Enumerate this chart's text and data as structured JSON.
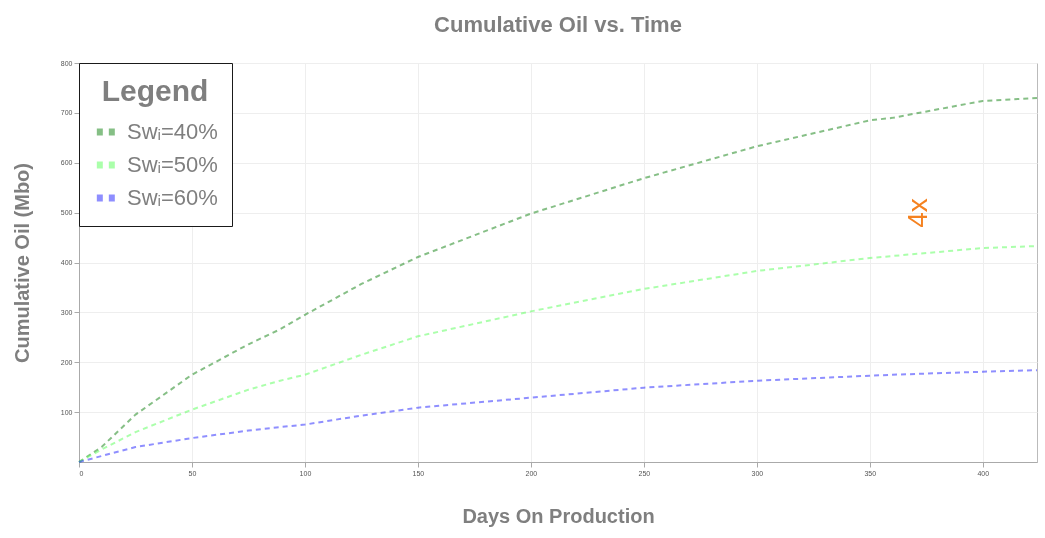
{
  "chart_data": {
    "type": "line",
    "title": "Cumulative Oil vs. Time",
    "xlabel": "Days On Production",
    "ylabel": "Cumulative Oil (Mbo)",
    "legend_title": "Legend",
    "x": [
      0,
      10,
      25,
      50,
      75,
      89,
      100,
      125,
      150,
      200,
      250,
      300,
      350,
      360,
      400,
      424
    ],
    "series": [
      {
        "name": "Swᵢ=40%",
        "color": "#228b22",
        "values": [
          0,
          30,
          95,
          175,
          236,
          266,
          295,
          357,
          411,
          498,
          569,
          633,
          685,
          690,
          724,
          730
        ]
      },
      {
        "name": "Swᵢ=50%",
        "color": "#66ff66",
        "values": [
          0,
          25,
          60,
          105,
          145,
          163,
          175,
          215,
          252,
          302,
          347,
          383,
          409,
          413,
          429,
          433
        ]
      },
      {
        "name": "Swᵢ=60%",
        "color": "#3333ff",
        "values": [
          0,
          12,
          30,
          48,
          63,
          70,
          75,
          93,
          109,
          129,
          149,
          163,
          173,
          175,
          181,
          184
        ]
      }
    ],
    "annotations": [
      "4x"
    ],
    "xlim": [
      0,
      424
    ],
    "ylim": [
      0,
      800
    ],
    "xticks": [
      0,
      50,
      100,
      150,
      200,
      250,
      300,
      350,
      400
    ],
    "yticks": [
      100,
      200,
      300,
      400,
      500,
      600,
      700,
      800
    ],
    "grid": true,
    "legend": "top left",
    "line_style": "dashed",
    "marker": "none"
  }
}
